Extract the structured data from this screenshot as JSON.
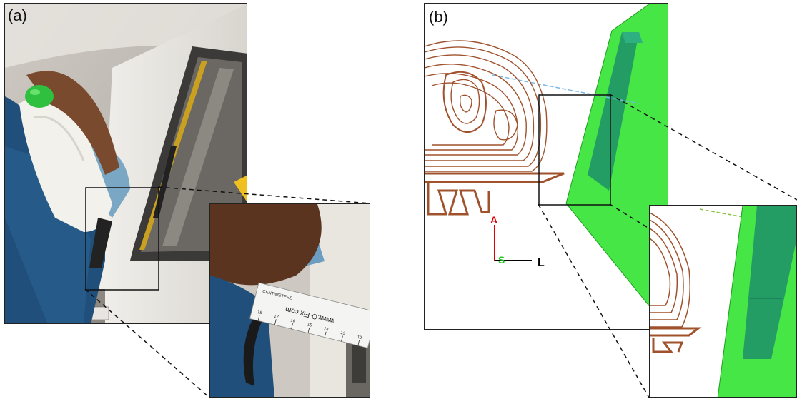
{
  "panels": [
    {
      "label": "(a)"
    },
    {
      "label": "(b)"
    }
  ],
  "photo": {
    "ruler_text": "www.Q-Fix.com",
    "ruler_units": "CENTIMETERS",
    "ruler_ticks": [
      "18",
      "17",
      "16",
      "15",
      "14",
      "13",
      "12"
    ]
  },
  "plan": {
    "axis_anterior": "A",
    "axis_superior": "S",
    "axis_left": "L",
    "colors": {
      "contour": "#a0522d",
      "block": "#39e639",
      "block_inner": "#1f8f6a",
      "beam_line": "#7ab8e6",
      "axis_a": "#e00000",
      "axis_s": "#20c020",
      "axis_l": "#000000"
    }
  }
}
